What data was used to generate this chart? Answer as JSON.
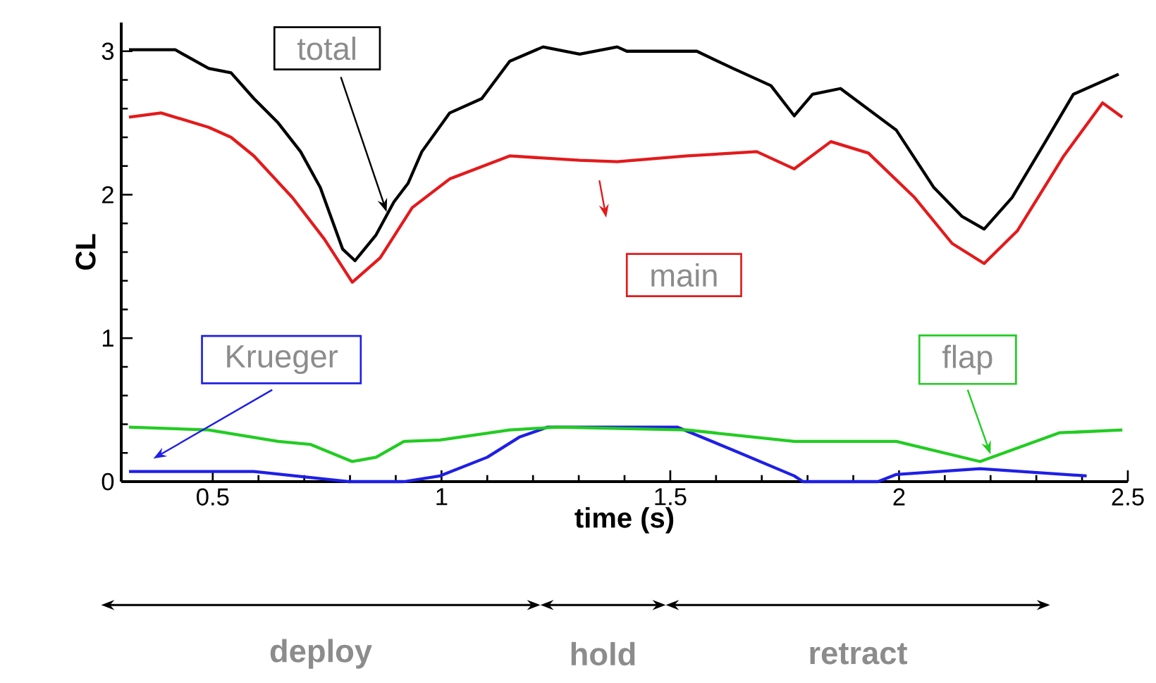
{
  "chart_data": {
    "type": "line",
    "xlabel": "time (s)",
    "ylabel": "CL",
    "xlim": [
      0.3,
      2.5
    ],
    "ylim": [
      0,
      3.2
    ],
    "xticks": [
      0.5,
      1,
      1.5,
      2,
      2.5
    ],
    "yticks": [
      0,
      1,
      2,
      3
    ],
    "grid": false,
    "legend": false,
    "marker": "none",
    "line_style": "solid",
    "series": [
      {
        "name": "total",
        "color": "#000000",
        "x": [
          0.317,
          0.418,
          0.491,
          0.54,
          0.59,
          0.643,
          0.692,
          0.735,
          0.784,
          0.811,
          0.857,
          0.896,
          0.927,
          0.957,
          1.018,
          1.088,
          1.149,
          1.222,
          1.302,
          1.384,
          1.405,
          1.558,
          1.637,
          1.72,
          1.771,
          1.811,
          1.872,
          1.994,
          2.076,
          2.137,
          2.186,
          2.247,
          2.32,
          2.381,
          2.48
        ],
        "values": [
          3.01,
          3.01,
          2.88,
          2.85,
          2.67,
          2.5,
          2.3,
          2.05,
          1.62,
          1.54,
          1.72,
          1.95,
          2.08,
          2.3,
          2.57,
          2.67,
          2.93,
          3.03,
          2.98,
          3.03,
          3.0,
          3.0,
          2.88,
          2.76,
          2.55,
          2.7,
          2.74,
          2.45,
          2.05,
          1.85,
          1.76,
          1.98,
          2.37,
          2.7,
          2.84
        ]
      },
      {
        "name": "main",
        "color": "#e31a1c",
        "x": [
          0.317,
          0.387,
          0.491,
          0.54,
          0.59,
          0.674,
          0.744,
          0.805,
          0.866,
          0.936,
          1.018,
          1.149,
          1.302,
          1.384,
          1.537,
          1.689,
          1.771,
          1.851,
          1.933,
          2.034,
          2.116,
          2.186,
          2.259,
          2.36,
          2.445,
          2.488
        ],
        "values": [
          2.54,
          2.57,
          2.47,
          2.4,
          2.27,
          1.98,
          1.69,
          1.39,
          1.56,
          1.91,
          2.11,
          2.27,
          2.24,
          2.23,
          2.27,
          2.3,
          2.18,
          2.37,
          2.29,
          1.98,
          1.66,
          1.52,
          1.75,
          2.27,
          2.64,
          2.54
        ]
      },
      {
        "name": "Krueger",
        "color": "#1f1fe6",
        "x": [
          0.317,
          0.59,
          0.796,
          0.918,
          0.997,
          1.1,
          1.17,
          1.232,
          1.515,
          1.637,
          1.771,
          1.79,
          1.954,
          1.994,
          2.177,
          2.41
        ],
        "values": [
          0.07,
          0.07,
          0.0,
          0.0,
          0.04,
          0.17,
          0.31,
          0.38,
          0.38,
          0.22,
          0.04,
          0.0,
          0.0,
          0.05,
          0.09,
          0.04
        ]
      },
      {
        "name": "flap",
        "color": "#22cc22",
        "x": [
          0.317,
          0.491,
          0.643,
          0.713,
          0.805,
          0.857,
          0.918,
          0.997,
          1.149,
          1.253,
          1.537,
          1.771,
          1.994,
          2.177,
          2.35,
          2.488
        ],
        "values": [
          0.38,
          0.36,
          0.28,
          0.26,
          0.14,
          0.17,
          0.28,
          0.29,
          0.36,
          0.38,
          0.36,
          0.28,
          0.28,
          0.14,
          0.34,
          0.36
        ]
      }
    ],
    "annotations": [
      "deploy",
      "hold",
      "retract"
    ]
  }
}
